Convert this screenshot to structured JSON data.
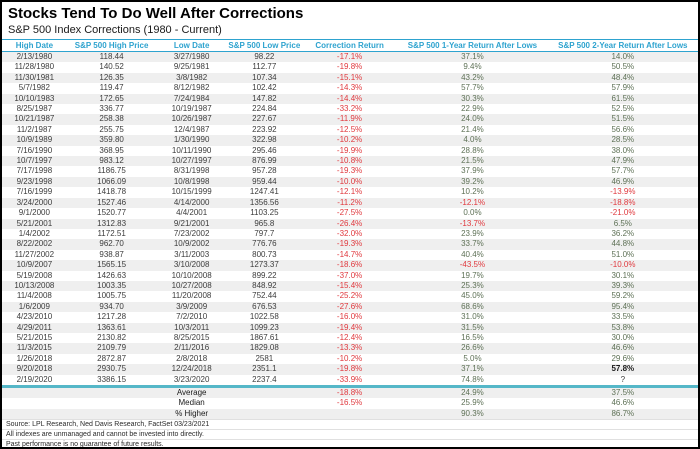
{
  "title": "Stocks Tend To Do Well After Corrections",
  "subtitle": "S&P 500 Index Corrections (1980 - Current)",
  "colors": {
    "header_accent": "#2EA3CF",
    "negative_red": "#E0393E",
    "positive_green": "#5E7156",
    "row_stripe": "#EFEFEF",
    "summary_separator": "#55B7C8"
  },
  "chart_data": {
    "type": "table",
    "title": "Stocks Tend To Do Well After Corrections",
    "subtitle": "S&P 500 Index Corrections (1980 - Current)",
    "columns": [
      "High Date",
      "S&P 500 High Price",
      "Low Date",
      "S&P 500 Low Price",
      "Correction Return",
      "S&P 500 1-Year Return After Lows",
      "S&P 500 2-Year Return After Lows"
    ],
    "rows": [
      [
        "2/13/1980",
        "118.44",
        "3/27/1980",
        "98.22",
        "-17.1%",
        "37.1%",
        "14.0%"
      ],
      [
        "11/28/1980",
        "140.52",
        "9/25/1981",
        "112.77",
        "-19.8%",
        "9.4%",
        "50.5%"
      ],
      [
        "11/30/1981",
        "126.35",
        "3/8/1982",
        "107.34",
        "-15.1%",
        "43.2%",
        "48.4%"
      ],
      [
        "5/7/1982",
        "119.47",
        "8/12/1982",
        "102.42",
        "-14.3%",
        "57.7%",
        "57.9%"
      ],
      [
        "10/10/1983",
        "172.65",
        "7/24/1984",
        "147.82",
        "-14.4%",
        "30.3%",
        "61.5%"
      ],
      [
        "8/25/1987",
        "336.77",
        "10/19/1987",
        "224.84",
        "-33.2%",
        "22.9%",
        "52.5%"
      ],
      [
        "10/21/1987",
        "258.38",
        "10/26/1987",
        "227.67",
        "-11.9%",
        "24.0%",
        "51.5%"
      ],
      [
        "11/2/1987",
        "255.75",
        "12/4/1987",
        "223.92",
        "-12.5%",
        "21.4%",
        "56.6%"
      ],
      [
        "10/9/1989",
        "359.80",
        "1/30/1990",
        "322.98",
        "-10.2%",
        "4.0%",
        "28.5%"
      ],
      [
        "7/16/1990",
        "368.95",
        "10/11/1990",
        "295.46",
        "-19.9%",
        "28.8%",
        "38.0%"
      ],
      [
        "10/7/1997",
        "983.12",
        "10/27/1997",
        "876.99",
        "-10.8%",
        "21.5%",
        "47.9%"
      ],
      [
        "7/17/1998",
        "1186.75",
        "8/31/1998",
        "957.28",
        "-19.3%",
        "37.9%",
        "57.7%"
      ],
      [
        "9/23/1998",
        "1066.09",
        "10/8/1998",
        "959.44",
        "-10.0%",
        "39.2%",
        "46.9%"
      ],
      [
        "7/16/1999",
        "1418.78",
        "10/15/1999",
        "1247.41",
        "-12.1%",
        "10.2%",
        "-13.9%"
      ],
      [
        "3/24/2000",
        "1527.46",
        "4/14/2000",
        "1356.56",
        "-11.2%",
        "-12.1%",
        "-18.8%"
      ],
      [
        "9/1/2000",
        "1520.77",
        "4/4/2001",
        "1103.25",
        "-27.5%",
        "0.0%",
        "-21.0%"
      ],
      [
        "5/21/2001",
        "1312.83",
        "9/21/2001",
        "965.8",
        "-26.4%",
        "-13.7%",
        "6.5%"
      ],
      [
        "1/4/2002",
        "1172.51",
        "7/23/2002",
        "797.7",
        "-32.0%",
        "23.9%",
        "36.2%"
      ],
      [
        "8/22/2002",
        "962.70",
        "10/9/2002",
        "776.76",
        "-19.3%",
        "33.7%",
        "44.8%"
      ],
      [
        "11/27/2002",
        "938.87",
        "3/11/2003",
        "800.73",
        "-14.7%",
        "40.4%",
        "51.0%"
      ],
      [
        "10/9/2007",
        "1565.15",
        "3/10/2008",
        "1273.37",
        "-18.6%",
        "-43.5%",
        "-10.0%"
      ],
      [
        "5/19/2008",
        "1426.63",
        "10/10/2008",
        "899.22",
        "-37.0%",
        "19.7%",
        "30.1%"
      ],
      [
        "10/13/2008",
        "1003.35",
        "10/27/2008",
        "848.92",
        "-15.4%",
        "25.3%",
        "39.3%"
      ],
      [
        "11/4/2008",
        "1005.75",
        "11/20/2008",
        "752.44",
        "-25.2%",
        "45.0%",
        "59.2%"
      ],
      [
        "1/6/2009",
        "934.70",
        "3/9/2009",
        "676.53",
        "-27.6%",
        "68.6%",
        "95.4%"
      ],
      [
        "4/23/2010",
        "1217.28",
        "7/2/2010",
        "1022.58",
        "-16.0%",
        "31.0%",
        "33.5%"
      ],
      [
        "4/29/2011",
        "1363.61",
        "10/3/2011",
        "1099.23",
        "-19.4%",
        "31.5%",
        "53.8%"
      ],
      [
        "5/21/2015",
        "2130.82",
        "8/25/2015",
        "1867.61",
        "-12.4%",
        "16.5%",
        "30.0%"
      ],
      [
        "11/3/2015",
        "2109.79",
        "2/11/2016",
        "1829.08",
        "-13.3%",
        "26.6%",
        "46.6%"
      ],
      [
        "1/26/2018",
        "2872.87",
        "2/8/2018",
        "2581",
        "-10.2%",
        "5.0%",
        "29.6%"
      ],
      [
        "9/20/2018",
        "2930.75",
        "12/24/2018",
        "2351.1",
        "-19.8%",
        "37.1%",
        "57.8%"
      ],
      [
        "2/19/2020",
        "3386.15",
        "3/23/2020",
        "2237.4",
        "-33.9%",
        "74.8%",
        "?"
      ]
    ],
    "bold_cell": [
      30,
      6
    ],
    "summary_rows": [
      {
        "label": "Average",
        "correction": "-18.8%",
        "one_year": "24.9%",
        "two_year": "37.5%"
      },
      {
        "label": "Median",
        "correction": "-16.5%",
        "one_year": "25.9%",
        "two_year": "46.6%"
      },
      {
        "label": "% Higher",
        "correction": "",
        "one_year": "90.3%",
        "two_year": "86.7%"
      }
    ]
  },
  "footer": {
    "source": "Source: LPL Research, Ned Davis Research, FactSet 03/23/2021",
    "disclaimer1": "All indexes are unmanaged and cannot be invested into directly.",
    "disclaimer2": "Past performance is no guarantee of future results."
  }
}
